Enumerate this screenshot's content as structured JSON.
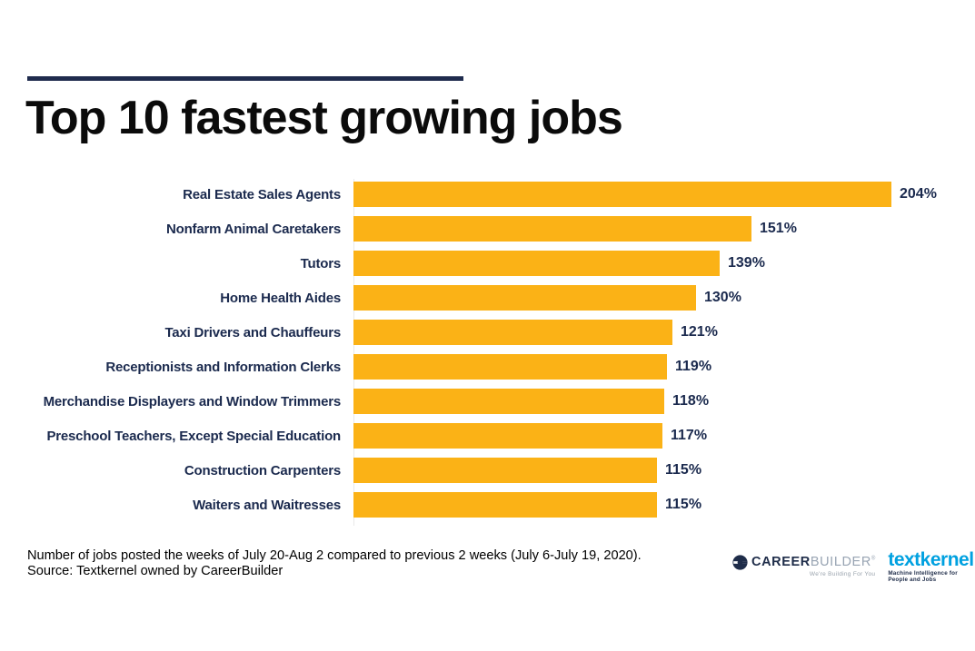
{
  "title": "Top 10 fastest growing jobs",
  "chart_data": {
    "type": "bar",
    "orientation": "horizontal",
    "title": "Top 10 fastest growing jobs",
    "xlabel": "",
    "ylabel": "",
    "xlim": [
      0,
      204
    ],
    "grid": false,
    "legend": "none",
    "value_suffix": "%",
    "bar_color": "#FBB216",
    "label_color": "#1B2A4E",
    "categories": [
      "Real Estate Sales Agents",
      "Nonfarm Animal Caretakers",
      "Tutors",
      "Home Health Aides",
      "Taxi Drivers and Chauffeurs",
      "Receptionists and Information Clerks",
      "Merchandise Displayers and Window Trimmers",
      "Preschool Teachers, Except Special Education",
      "Construction Carpenters",
      "Waiters and Waitresses"
    ],
    "values": [
      204,
      151,
      139,
      130,
      121,
      119,
      118,
      117,
      115,
      115
    ],
    "value_labels": [
      "204%",
      "151%",
      "139%",
      "130%",
      "121%",
      "119%",
      "118%",
      "117%",
      "115%",
      "115%"
    ]
  },
  "footer": {
    "line1": "Number of jobs posted the weeks of July 20-Aug 2 compared to previous 2 weeks (July 6-July 19, 2020).",
    "line2": "Source: Textkernel owned by CareerBuilder"
  },
  "logos": {
    "careerbuilder": {
      "part1": "CAREER",
      "part2": "BUILDER",
      "reg_mark": "®",
      "tagline": "We're Building For You"
    },
    "textkernel": {
      "name": "textkernel",
      "tagline": "Machine Intelligence for People and Jobs"
    }
  },
  "colors": {
    "bar": "#FBB216",
    "navy": "#1B2A4E",
    "rule": "#1F2B4D",
    "textkernel_blue": "#00A1E0",
    "builder_gray": "#98A4B3"
  }
}
